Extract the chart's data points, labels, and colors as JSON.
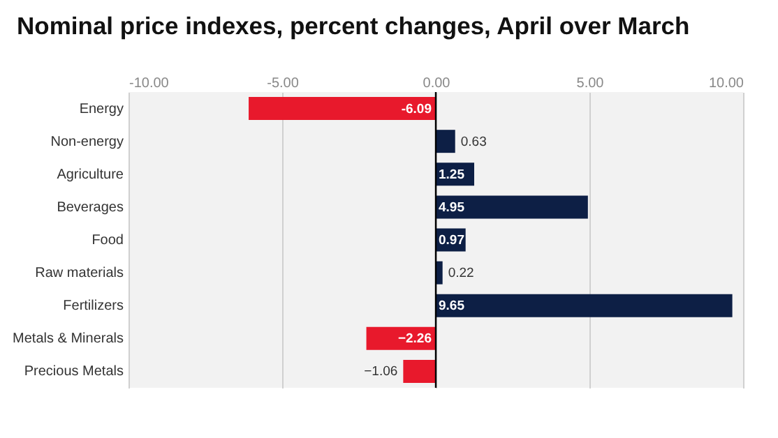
{
  "chart_data": {
    "type": "bar",
    "orientation": "horizontal",
    "title": "Nominal price indexes, percent changes, April over March",
    "categories": [
      "Energy",
      "Non-energy",
      "Agriculture",
      "Beverages",
      "Food",
      "Raw materials",
      "Fertilizers",
      "Metals & Minerals",
      "Precious Metals"
    ],
    "values": [
      -6.09,
      0.63,
      1.25,
      4.95,
      0.97,
      0.22,
      9.65,
      -2.26,
      -1.06
    ],
    "colors": [
      "#e8192c",
      "#0d1f45",
      "#0d1f45",
      "#0d1f45",
      "#0d1f45",
      "#0d1f45",
      "#0d1f45",
      "#e8192c",
      "#e8192c"
    ],
    "value_labels": [
      "-6.09",
      "0.63",
      "1.25",
      "4.95",
      "0.97",
      "0.22",
      "9.65",
      "−2.26",
      "−1.06"
    ],
    "xlim": [
      -10,
      10
    ],
    "xticks": [
      {
        "value": -10,
        "label": "-10.00"
      },
      {
        "value": -5,
        "label": "-5.00"
      },
      {
        "value": 0,
        "label": "0.00"
      },
      {
        "value": 5,
        "label": "5.00"
      },
      {
        "value": 10,
        "label": "10.00"
      }
    ],
    "ref_lines": [
      {
        "axis": "x",
        "value": 0,
        "color": "#000000"
      }
    ],
    "grid": "x"
  }
}
